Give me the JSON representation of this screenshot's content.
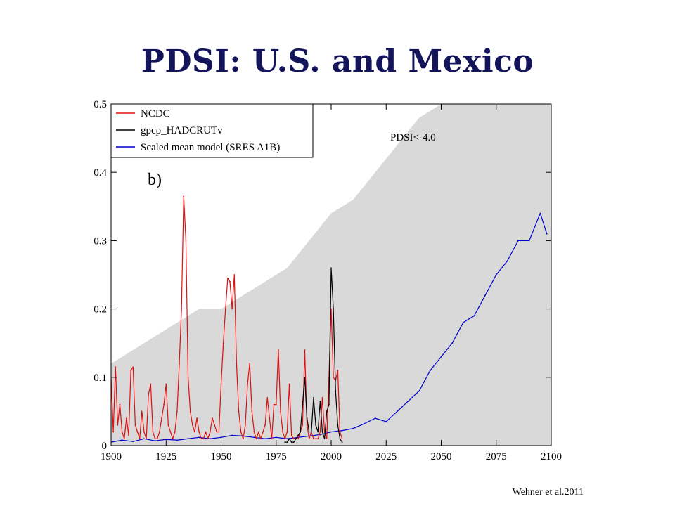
{
  "slide": {
    "title": "PDSI: U.S. and Mexico",
    "citation": "Wehner et al.2011"
  },
  "chart_data": {
    "type": "line",
    "panel_label": "b)",
    "annotation": "PDSI<-4.0",
    "xlabel": "",
    "ylabel": "",
    "xlim": [
      1900,
      2100
    ],
    "ylim": [
      0,
      0.5
    ],
    "x_ticks": [
      1900,
      1925,
      1950,
      1975,
      2000,
      2025,
      2050,
      2075,
      2100
    ],
    "y_ticks": [
      0,
      0.1,
      0.2,
      0.3,
      0.4,
      0.5
    ],
    "y_tick_labels": [
      "0",
      "0.1",
      "0.2",
      "0.3",
      "0.4",
      "0.5"
    ],
    "legend_position": "top-left",
    "grid": false,
    "series": [
      {
        "name": "NCDC",
        "color": "#e01010",
        "x": [
          1900,
          1901,
          1902,
          1903,
          1904,
          1905,
          1906,
          1907,
          1908,
          1909,
          1910,
          1911,
          1912,
          1913,
          1914,
          1915,
          1916,
          1917,
          1918,
          1919,
          1920,
          1921,
          1922,
          1923,
          1924,
          1925,
          1926,
          1927,
          1928,
          1929,
          1930,
          1931,
          1932,
          1933,
          1934,
          1935,
          1936,
          1937,
          1938,
          1939,
          1940,
          1941,
          1942,
          1943,
          1944,
          1945,
          1946,
          1947,
          1948,
          1949,
          1950,
          1951,
          1952,
          1953,
          1954,
          1955,
          1956,
          1957,
          1958,
          1959,
          1960,
          1961,
          1962,
          1963,
          1964,
          1965,
          1966,
          1967,
          1968,
          1969,
          1970,
          1971,
          1972,
          1973,
          1974,
          1975,
          1976,
          1977,
          1978,
          1979,
          1980,
          1981,
          1982,
          1983,
          1984,
          1985,
          1986,
          1987,
          1988,
          1989,
          1990,
          1991,
          1992,
          1993,
          1994,
          1995,
          1996,
          1997,
          1998,
          1999,
          2000,
          2001,
          2002,
          2003,
          2004,
          2005
        ],
        "values": [
          0.1,
          0.02,
          0.115,
          0.03,
          0.06,
          0.02,
          0.01,
          0.04,
          0.015,
          0.11,
          0.115,
          0.03,
          0.02,
          0.01,
          0.05,
          0.02,
          0.01,
          0.075,
          0.09,
          0.02,
          0.01,
          0.01,
          0.02,
          0.04,
          0.06,
          0.09,
          0.03,
          0.02,
          0.01,
          0.02,
          0.05,
          0.12,
          0.2,
          0.365,
          0.3,
          0.1,
          0.05,
          0.03,
          0.02,
          0.04,
          0.02,
          0.01,
          0.01,
          0.02,
          0.01,
          0.02,
          0.04,
          0.03,
          0.02,
          0.02,
          0.09,
          0.15,
          0.2,
          0.245,
          0.24,
          0.2,
          0.25,
          0.12,
          0.05,
          0.02,
          0.01,
          0.03,
          0.09,
          0.12,
          0.05,
          0.02,
          0.01,
          0.02,
          0.01,
          0.02,
          0.03,
          0.07,
          0.04,
          0.01,
          0.06,
          0.06,
          0.14,
          0.05,
          0.02,
          0.01,
          0.02,
          0.09,
          0.015,
          0.01,
          0.01,
          0.01,
          0.02,
          0.03,
          0.14,
          0.03,
          0.01,
          0.02,
          0.01,
          0.01,
          0.01,
          0.02,
          0.07,
          0.02,
          0.01,
          0.1,
          0.2,
          0.1,
          0.095,
          0.11,
          0.02,
          0.01
        ]
      },
      {
        "name": "gpcp_HADCRUTv",
        "color": "#000000",
        "x": [
          1979,
          1980,
          1981,
          1982,
          1983,
          1984,
          1985,
          1986,
          1987,
          1988,
          1989,
          1990,
          1991,
          1992,
          1993,
          1994,
          1995,
          1996,
          1997,
          1998,
          1999,
          2000,
          2001,
          2002,
          2003,
          2004,
          2005
        ],
        "values": [
          0.005,
          0.005,
          0.01,
          0.005,
          0.005,
          0.01,
          0.015,
          0.02,
          0.06,
          0.1,
          0.04,
          0.02,
          0.02,
          0.07,
          0.03,
          0.02,
          0.065,
          0.02,
          0.01,
          0.05,
          0.06,
          0.26,
          0.2,
          0.08,
          0.03,
          0.01,
          0.005
        ]
      },
      {
        "name": "Scaled mean model (SRES A1B)",
        "color": "#0000cc",
        "x": [
          1900,
          1905,
          1910,
          1915,
          1920,
          1925,
          1930,
          1935,
          1940,
          1945,
          1950,
          1955,
          1960,
          1965,
          1970,
          1975,
          1980,
          1985,
          1990,
          1995,
          2000,
          2005,
          2010,
          2015,
          2020,
          2025,
          2030,
          2035,
          2040,
          2045,
          2050,
          2055,
          2060,
          2065,
          2070,
          2075,
          2080,
          2085,
          2090,
          2095,
          2098
        ],
        "values": [
          0.005,
          0.008,
          0.006,
          0.01,
          0.007,
          0.009,
          0.008,
          0.01,
          0.012,
          0.01,
          0.012,
          0.015,
          0.014,
          0.012,
          0.01,
          0.012,
          0.01,
          0.012,
          0.014,
          0.016,
          0.02,
          0.022,
          0.025,
          0.032,
          0.04,
          0.035,
          0.05,
          0.065,
          0.08,
          0.11,
          0.13,
          0.15,
          0.18,
          0.19,
          0.22,
          0.25,
          0.27,
          0.3,
          0.3,
          0.34,
          0.31
        ]
      }
    ],
    "uncertainty_band": {
      "name": "",
      "color": "#d9d9d9",
      "x": [
        1900,
        1910,
        1920,
        1930,
        1940,
        1950,
        1960,
        1970,
        1980,
        1990,
        2000,
        2010,
        2020,
        2030,
        2040,
        2050,
        2060,
        2070,
        2080,
        2090,
        2100
      ],
      "upper": [
        0.12,
        0.14,
        0.16,
        0.18,
        0.2,
        0.2,
        0.22,
        0.24,
        0.26,
        0.3,
        0.34,
        0.36,
        0.4,
        0.44,
        0.48,
        0.5,
        0.5,
        0.5,
        0.5,
        0.5,
        0.5
      ],
      "lower": [
        0,
        0,
        0,
        0,
        0,
        0,
        0,
        0,
        0,
        0,
        0,
        0,
        0,
        0,
        0,
        0,
        0,
        0,
        0,
        0,
        0
      ]
    }
  }
}
